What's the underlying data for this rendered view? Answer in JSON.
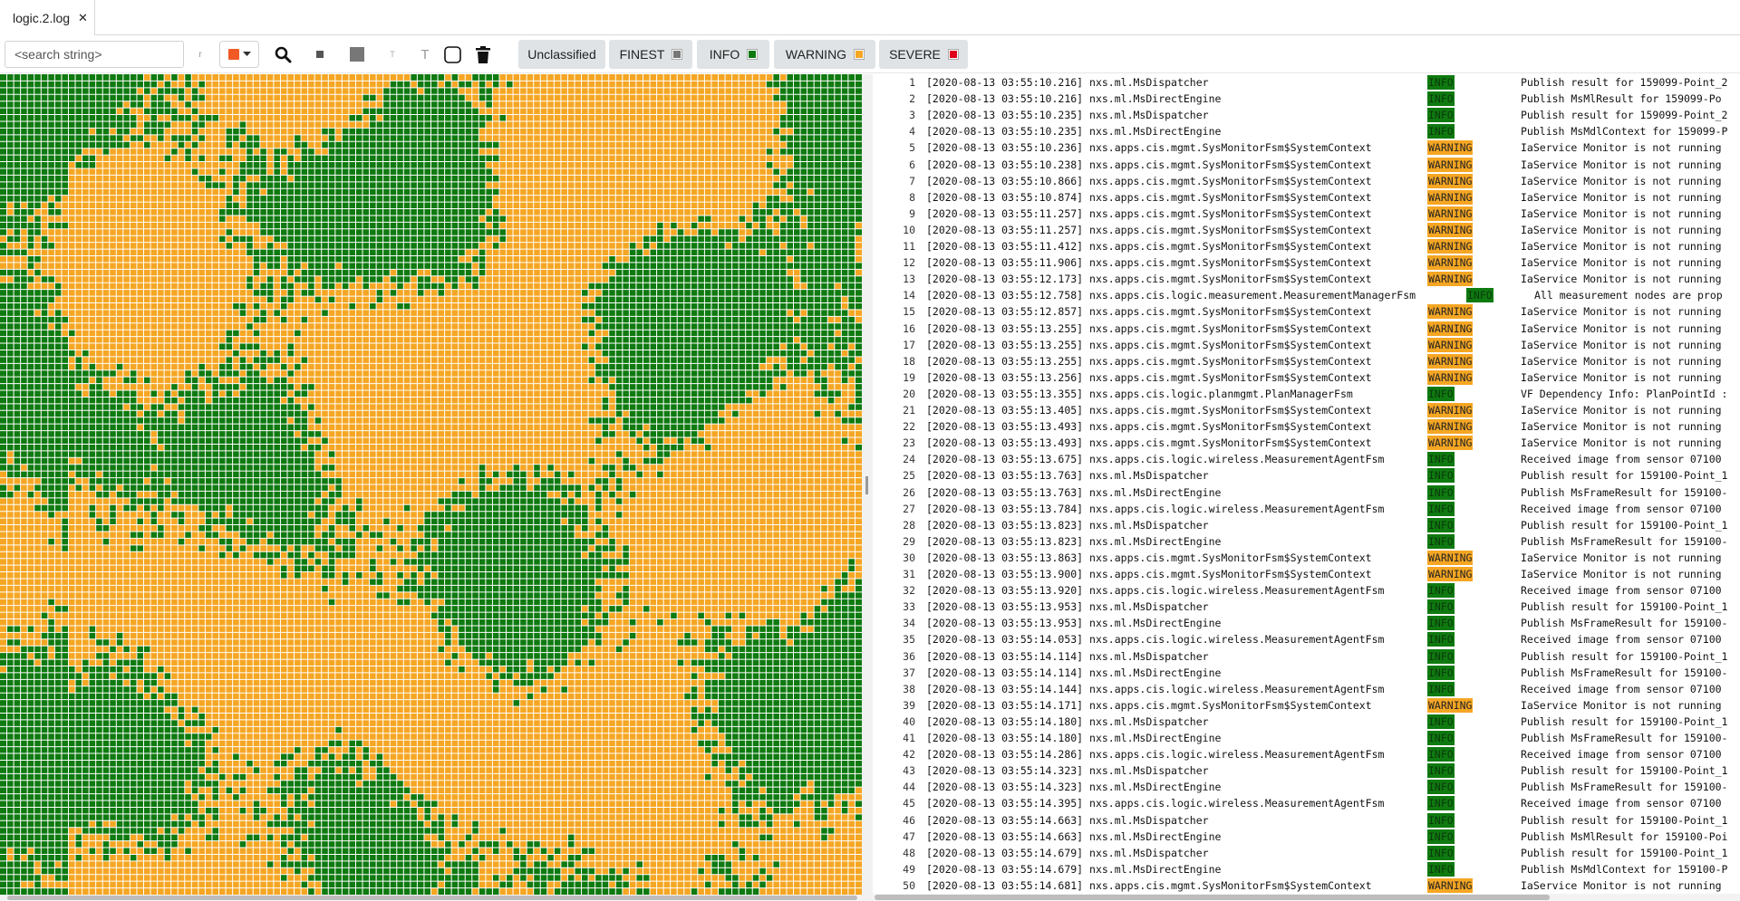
{
  "colors": {
    "finest": "#777777",
    "info": "#0f7a10",
    "warning": "#f5a623",
    "severe": "#e0001a",
    "marker": "#f15a24"
  },
  "tab": {
    "label": "logic.2.log",
    "close_glyph": "✕"
  },
  "toolbar": {
    "search_placeholder": "<search string>",
    "regex_glyph": "r",
    "icons": [
      "search-icon",
      "small-square-icon",
      "filled-square-icon",
      "small-text-icon",
      "text-icon",
      "rounded-square-icon",
      "trash-icon"
    ],
    "levels": [
      {
        "label": "Unclassified",
        "color": ""
      },
      {
        "label": "FINEST",
        "color": "#777777"
      },
      {
        "label": "INFO",
        "color": "#0f7a10"
      },
      {
        "label": "WARNING",
        "color": "#f5a623"
      },
      {
        "label": "SEVERE",
        "color": "#e0001a"
      }
    ]
  },
  "heatmap": {
    "rows": 122,
    "cols": 126
  },
  "log_lines": [
    {
      "n": "1",
      "ts": "[2020-08-13 03:55:10.216]",
      "src": "nxs.ml.MsDispatcher",
      "lvl": "INFO",
      "msg": "Publish result for 159099-Point_2"
    },
    {
      "n": "2",
      "ts": "[2020-08-13 03:55:10.216]",
      "src": "nxs.ml.MsDirectEngine",
      "lvl": "INFO",
      "msg": "Publish MsMlResult for 159099-Po"
    },
    {
      "n": "3",
      "ts": "[2020-08-13 03:55:10.235]",
      "src": "nxs.ml.MsDispatcher",
      "lvl": "INFO",
      "msg": "Publish result for 159099-Point_2"
    },
    {
      "n": "4",
      "ts": "[2020-08-13 03:55:10.235]",
      "src": "nxs.ml.MsDirectEngine",
      "lvl": "INFO",
      "msg": "Publish MsMdlContext for 159099-P"
    },
    {
      "n": "5",
      "ts": "[2020-08-13 03:55:10.236]",
      "src": "nxs.apps.cis.mgmt.SysMonitorFsm$SystemContext",
      "lvl": "WARNING",
      "msg": "IaService Monitor is not running"
    },
    {
      "n": "6",
      "ts": "[2020-08-13 03:55:10.238]",
      "src": "nxs.apps.cis.mgmt.SysMonitorFsm$SystemContext",
      "lvl": "WARNING",
      "msg": "IaService Monitor is not running"
    },
    {
      "n": "7",
      "ts": "[2020-08-13 03:55:10.866]",
      "src": "nxs.apps.cis.mgmt.SysMonitorFsm$SystemContext",
      "lvl": "WARNING",
      "msg": "IaService Monitor is not running"
    },
    {
      "n": "8",
      "ts": "[2020-08-13 03:55:10.874]",
      "src": "nxs.apps.cis.mgmt.SysMonitorFsm$SystemContext",
      "lvl": "WARNING",
      "msg": "IaService Monitor is not running"
    },
    {
      "n": "9",
      "ts": "[2020-08-13 03:55:11.257]",
      "src": "nxs.apps.cis.mgmt.SysMonitorFsm$SystemContext",
      "lvl": "WARNING",
      "msg": "IaService Monitor is not running"
    },
    {
      "n": "10",
      "ts": "[2020-08-13 03:55:11.257]",
      "src": "nxs.apps.cis.mgmt.SysMonitorFsm$SystemContext",
      "lvl": "WARNING",
      "msg": "IaService Monitor is not running"
    },
    {
      "n": "11",
      "ts": "[2020-08-13 03:55:11.412]",
      "src": "nxs.apps.cis.mgmt.SysMonitorFsm$SystemContext",
      "lvl": "WARNING",
      "msg": "IaService Monitor is not running"
    },
    {
      "n": "12",
      "ts": "[2020-08-13 03:55:11.906]",
      "src": "nxs.apps.cis.mgmt.SysMonitorFsm$SystemContext",
      "lvl": "WARNING",
      "msg": "IaService Monitor is not running"
    },
    {
      "n": "13",
      "ts": "[2020-08-13 03:55:12.173]",
      "src": "nxs.apps.cis.mgmt.SysMonitorFsm$SystemContext",
      "lvl": "WARNING",
      "msg": "IaService Monitor is not running"
    },
    {
      "n": "14",
      "ts": "[2020-08-13 03:55:12.758]",
      "src": "nxs.apps.cis.logic.measurement.MeasurementManagerFsm",
      "lvl": "INFO",
      "msg": "All measurement nodes are prop",
      "inline": true
    },
    {
      "n": "15",
      "ts": "[2020-08-13 03:55:12.857]",
      "src": "nxs.apps.cis.mgmt.SysMonitorFsm$SystemContext",
      "lvl": "WARNING",
      "msg": "IaService Monitor is not running"
    },
    {
      "n": "16",
      "ts": "[2020-08-13 03:55:13.255]",
      "src": "nxs.apps.cis.mgmt.SysMonitorFsm$SystemContext",
      "lvl": "WARNING",
      "msg": "IaService Monitor is not running"
    },
    {
      "n": "17",
      "ts": "[2020-08-13 03:55:13.255]",
      "src": "nxs.apps.cis.mgmt.SysMonitorFsm$SystemContext",
      "lvl": "WARNING",
      "msg": "IaService Monitor is not running"
    },
    {
      "n": "18",
      "ts": "[2020-08-13 03:55:13.255]",
      "src": "nxs.apps.cis.mgmt.SysMonitorFsm$SystemContext",
      "lvl": "WARNING",
      "msg": "IaService Monitor is not running"
    },
    {
      "n": "19",
      "ts": "[2020-08-13 03:55:13.256]",
      "src": "nxs.apps.cis.mgmt.SysMonitorFsm$SystemContext",
      "lvl": "WARNING",
      "msg": "IaService Monitor is not running"
    },
    {
      "n": "20",
      "ts": "[2020-08-13 03:55:13.355]",
      "src": "nxs.apps.cis.logic.planmgmt.PlanManagerFsm",
      "lvl": "INFO",
      "msg": "VF Dependency Info: PlanPointId :"
    },
    {
      "n": "21",
      "ts": "[2020-08-13 03:55:13.405]",
      "src": "nxs.apps.cis.mgmt.SysMonitorFsm$SystemContext",
      "lvl": "WARNING",
      "msg": "IaService Monitor is not running"
    },
    {
      "n": "22",
      "ts": "[2020-08-13 03:55:13.493]",
      "src": "nxs.apps.cis.mgmt.SysMonitorFsm$SystemContext",
      "lvl": "WARNING",
      "msg": "IaService Monitor is not running"
    },
    {
      "n": "23",
      "ts": "[2020-08-13 03:55:13.493]",
      "src": "nxs.apps.cis.mgmt.SysMonitorFsm$SystemContext",
      "lvl": "WARNING",
      "msg": "IaService Monitor is not running"
    },
    {
      "n": "24",
      "ts": "[2020-08-13 03:55:13.675]",
      "src": "nxs.apps.cis.logic.wireless.MeasurementAgentFsm",
      "lvl": "INFO",
      "msg": "Received image from sensor 07100"
    },
    {
      "n": "25",
      "ts": "[2020-08-13 03:55:13.763]",
      "src": "nxs.ml.MsDispatcher",
      "lvl": "INFO",
      "msg": "Publish result for 159100-Point_1"
    },
    {
      "n": "26",
      "ts": "[2020-08-13 03:55:13.763]",
      "src": "nxs.ml.MsDirectEngine",
      "lvl": "INFO",
      "msg": "Publish MsFrameResult for 159100-"
    },
    {
      "n": "27",
      "ts": "[2020-08-13 03:55:13.784]",
      "src": "nxs.apps.cis.logic.wireless.MeasurementAgentFsm",
      "lvl": "INFO",
      "msg": "Received image from sensor 07100"
    },
    {
      "n": "28",
      "ts": "[2020-08-13 03:55:13.823]",
      "src": "nxs.ml.MsDispatcher",
      "lvl": "INFO",
      "msg": "Publish result for 159100-Point_1"
    },
    {
      "n": "29",
      "ts": "[2020-08-13 03:55:13.823]",
      "src": "nxs.ml.MsDirectEngine",
      "lvl": "INFO",
      "msg": "Publish MsFrameResult for 159100-"
    },
    {
      "n": "30",
      "ts": "[2020-08-13 03:55:13.863]",
      "src": "nxs.apps.cis.mgmt.SysMonitorFsm$SystemContext",
      "lvl": "WARNING",
      "msg": "IaService Monitor is not running"
    },
    {
      "n": "31",
      "ts": "[2020-08-13 03:55:13.900]",
      "src": "nxs.apps.cis.mgmt.SysMonitorFsm$SystemContext",
      "lvl": "WARNING",
      "msg": "IaService Monitor is not running"
    },
    {
      "n": "32",
      "ts": "[2020-08-13 03:55:13.920]",
      "src": "nxs.apps.cis.logic.wireless.MeasurementAgentFsm",
      "lvl": "INFO",
      "msg": "Received image from sensor 07100"
    },
    {
      "n": "33",
      "ts": "[2020-08-13 03:55:13.953]",
      "src": "nxs.ml.MsDispatcher",
      "lvl": "INFO",
      "msg": "Publish result for 159100-Point_1"
    },
    {
      "n": "34",
      "ts": "[2020-08-13 03:55:13.953]",
      "src": "nxs.ml.MsDirectEngine",
      "lvl": "INFO",
      "msg": "Publish MsFrameResult for 159100-"
    },
    {
      "n": "35",
      "ts": "[2020-08-13 03:55:14.053]",
      "src": "nxs.apps.cis.logic.wireless.MeasurementAgentFsm",
      "lvl": "INFO",
      "msg": "Received image from sensor 07100"
    },
    {
      "n": "36",
      "ts": "[2020-08-13 03:55:14.114]",
      "src": "nxs.ml.MsDispatcher",
      "lvl": "INFO",
      "msg": "Publish result for 159100-Point_1"
    },
    {
      "n": "37",
      "ts": "[2020-08-13 03:55:14.114]",
      "src": "nxs.ml.MsDirectEngine",
      "lvl": "INFO",
      "msg": "Publish MsFrameResult for 159100-"
    },
    {
      "n": "38",
      "ts": "[2020-08-13 03:55:14.144]",
      "src": "nxs.apps.cis.logic.wireless.MeasurementAgentFsm",
      "lvl": "INFO",
      "msg": "Received image from sensor 07100"
    },
    {
      "n": "39",
      "ts": "[2020-08-13 03:55:14.171]",
      "src": "nxs.apps.cis.mgmt.SysMonitorFsm$SystemContext",
      "lvl": "WARNING",
      "msg": "IaService Monitor is not running"
    },
    {
      "n": "40",
      "ts": "[2020-08-13 03:55:14.180]",
      "src": "nxs.ml.MsDispatcher",
      "lvl": "INFO",
      "msg": "Publish result for 159100-Point_1"
    },
    {
      "n": "41",
      "ts": "[2020-08-13 03:55:14.180]",
      "src": "nxs.ml.MsDirectEngine",
      "lvl": "INFO",
      "msg": "Publish MsFrameResult for 159100-"
    },
    {
      "n": "42",
      "ts": "[2020-08-13 03:55:14.286]",
      "src": "nxs.apps.cis.logic.wireless.MeasurementAgentFsm",
      "lvl": "INFO",
      "msg": "Received image from sensor 07100"
    },
    {
      "n": "43",
      "ts": "[2020-08-13 03:55:14.323]",
      "src": "nxs.ml.MsDispatcher",
      "lvl": "INFO",
      "msg": "Publish result for 159100-Point_1"
    },
    {
      "n": "44",
      "ts": "[2020-08-13 03:55:14.323]",
      "src": "nxs.ml.MsDirectEngine",
      "lvl": "INFO",
      "msg": "Publish MsFrameResult for 159100-"
    },
    {
      "n": "45",
      "ts": "[2020-08-13 03:55:14.395]",
      "src": "nxs.apps.cis.logic.wireless.MeasurementAgentFsm",
      "lvl": "INFO",
      "msg": "Received image from sensor 07100"
    },
    {
      "n": "46",
      "ts": "[2020-08-13 03:55:14.663]",
      "src": "nxs.ml.MsDispatcher",
      "lvl": "INFO",
      "msg": "Publish result for 159100-Point_1"
    },
    {
      "n": "47",
      "ts": "[2020-08-13 03:55:14.663]",
      "src": "nxs.ml.MsDirectEngine",
      "lvl": "INFO",
      "msg": "Publish MsMlResult for 159100-Poi"
    },
    {
      "n": "48",
      "ts": "[2020-08-13 03:55:14.679]",
      "src": "nxs.ml.MsDispatcher",
      "lvl": "INFO",
      "msg": "Publish result for 159100-Point_1"
    },
    {
      "n": "49",
      "ts": "[2020-08-13 03:55:14.679]",
      "src": "nxs.ml.MsDirectEngine",
      "lvl": "INFO",
      "msg": "Publish MsMdlContext for 159100-P"
    },
    {
      "n": "50",
      "ts": "[2020-08-13 03:55:14.681]",
      "src": "nxs.apps.cis.mgmt.SysMonitorFsm$SystemContext",
      "lvl": "WARNING",
      "msg": "IaService Monitor is not running"
    }
  ]
}
